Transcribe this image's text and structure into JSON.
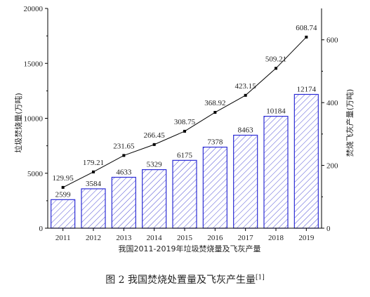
{
  "figure": {
    "caption": "图 2  我国焚烧处置量及飞灰产生量",
    "caption_ref": "[1]"
  },
  "chart_data": {
    "type": "bar",
    "title": "",
    "xlabel": "我国2011-2019年垃圾焚烧量及飞灰产量",
    "ylabel": "垃圾焚烧量(万吨)",
    "y2label": "焚烧飞灰产量(万吨)",
    "categories": [
      "2011",
      "2012",
      "2013",
      "2014",
      "2015",
      "2016",
      "2017",
      "2018",
      "2019"
    ],
    "ylim": [
      0,
      20000
    ],
    "y2lim": [
      0,
      700
    ],
    "yticks": [
      "0",
      "5000",
      "10000",
      "15000",
      "20000"
    ],
    "y2ticks": [
      "0",
      "200",
      "400",
      "600"
    ],
    "series": [
      {
        "axis": "left",
        "kind": "bar",
        "values": [
          2599,
          3584,
          4633,
          5329,
          6175,
          7378,
          8463,
          10184,
          12174
        ],
        "labels": [
          "2599",
          "3584",
          "4633",
          "5329",
          "6175",
          "7378",
          "8463",
          "10184",
          "12174"
        ]
      },
      {
        "axis": "right",
        "kind": "line",
        "values": [
          129.95,
          179.21,
          231.65,
          266.45,
          308.75,
          368.92,
          423.15,
          509.21,
          608.74
        ],
        "labels": [
          "129.95",
          "179.21",
          "231.65",
          "266.45",
          "308.75",
          "368.92",
          "423.15",
          "509.21",
          "608.74"
        ]
      }
    ],
    "colors": {
      "bar_stroke": "#2d2dd6",
      "bar_hatch": "#3a3ad0",
      "line": "#000000",
      "axis": "#000000"
    },
    "grid": false
  }
}
